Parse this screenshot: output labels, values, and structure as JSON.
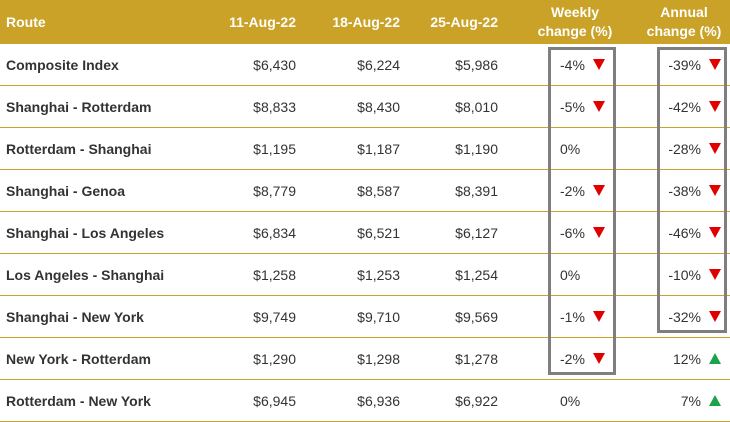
{
  "table": {
    "headers": {
      "route": "Route",
      "d1": "11-Aug-22",
      "d2": "18-Aug-22",
      "d3": "25-Aug-22",
      "weekly_line1": "Weekly",
      "weekly_line2": "change (%)",
      "annual_line1": "Annual",
      "annual_line2": "change (%)"
    },
    "rows": [
      {
        "route": "Composite Index",
        "d1": "$6,430",
        "d2": "$6,224",
        "d3": "$5,986",
        "weekly": "-4%",
        "weekly_dir": "down",
        "annual": "-39%",
        "annual_dir": "down"
      },
      {
        "route": "Shanghai - Rotterdam",
        "d1": "$8,833",
        "d2": "$8,430",
        "d3": "$8,010",
        "weekly": "-5%",
        "weekly_dir": "down",
        "annual": "-42%",
        "annual_dir": "down"
      },
      {
        "route": "Rotterdam - Shanghai",
        "d1": "$1,195",
        "d2": "$1,187",
        "d3": "$1,190",
        "weekly": "0%",
        "weekly_dir": "none",
        "annual": "-28%",
        "annual_dir": "down"
      },
      {
        "route": "Shanghai - Genoa",
        "d1": "$8,779",
        "d2": "$8,587",
        "d3": "$8,391",
        "weekly": "-2%",
        "weekly_dir": "down",
        "annual": "-38%",
        "annual_dir": "down"
      },
      {
        "route": "Shanghai - Los Angeles",
        "d1": "$6,834",
        "d2": "$6,521",
        "d3": "$6,127",
        "weekly": "-6%",
        "weekly_dir": "down",
        "annual": "-46%",
        "annual_dir": "down"
      },
      {
        "route": "Los Angeles - Shanghai",
        "d1": "$1,258",
        "d2": "$1,253",
        "d3": "$1,254",
        "weekly": "0%",
        "weekly_dir": "none",
        "annual": "-10%",
        "annual_dir": "down"
      },
      {
        "route": "Shanghai - New York",
        "d1": "$9,749",
        "d2": "$9,710",
        "d3": "$9,569",
        "weekly": "-1%",
        "weekly_dir": "down",
        "annual": "-32%",
        "annual_dir": "down"
      },
      {
        "route": "New York - Rotterdam",
        "d1": "$1,290",
        "d2": "$1,298",
        "d3": "$1,278",
        "weekly": "-2%",
        "weekly_dir": "down",
        "annual": "12%",
        "annual_dir": "up"
      },
      {
        "route": "Rotterdam - New York",
        "d1": "$6,945",
        "d2": "$6,936",
        "d3": "$6,922",
        "weekly": "0%",
        "weekly_dir": "none",
        "annual": "7%",
        "annual_dir": "up"
      }
    ]
  },
  "colors": {
    "header_bg": "#c9a227",
    "divider": "#c9a227",
    "arrow_down": "#e00000",
    "arrow_up": "#1aa34a",
    "highlight_box": "#7f7f7f"
  }
}
